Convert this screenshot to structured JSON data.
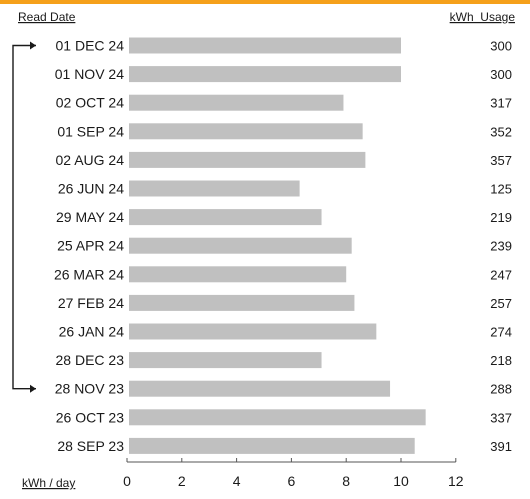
{
  "headers": {
    "read_date": "Read Date",
    "kwh_usage": "kWh  Usage",
    "kwh_per_day": "kWh / day"
  },
  "colors": {
    "accent_bar": "#f5a01a",
    "bar_fill": "#c0c0c0",
    "axis": "#555555",
    "bracket": "#1a1a1a"
  },
  "chart_data": {
    "type": "bar",
    "orientation": "horizontal",
    "xlim": [
      0,
      12
    ],
    "xticks": [
      0,
      2,
      4,
      6,
      8,
      10,
      12
    ],
    "xlabel": "kWh / day",
    "rows": [
      {
        "date": "01 DEC 24",
        "kwh_per_day": 10.0,
        "usage": "300"
      },
      {
        "date": "01 NOV 24",
        "kwh_per_day": 10.0,
        "usage": "300"
      },
      {
        "date": "02 OCT 24",
        "kwh_per_day": 7.9,
        "usage": "317"
      },
      {
        "date": "01 SEP 24",
        "kwh_per_day": 8.6,
        "usage": "352"
      },
      {
        "date": "02 AUG 24",
        "kwh_per_day": 8.7,
        "usage": "357"
      },
      {
        "date": "26 JUN 24",
        "kwh_per_day": 6.3,
        "usage": "125"
      },
      {
        "date": "29 MAY 24",
        "kwh_per_day": 7.1,
        "usage": "219"
      },
      {
        "date": "25 APR 24",
        "kwh_per_day": 8.2,
        "usage": "239"
      },
      {
        "date": "26 MAR 24",
        "kwh_per_day": 8.0,
        "usage": "247"
      },
      {
        "date": "27 FEB 24",
        "kwh_per_day": 8.3,
        "usage": "257"
      },
      {
        "date": "26 JAN 24",
        "kwh_per_day": 9.1,
        "usage": "274"
      },
      {
        "date": "28 DEC 23",
        "kwh_per_day": 7.1,
        "usage": "218"
      },
      {
        "date": "28 NOV 23",
        "kwh_per_day": 9.6,
        "usage": "288"
      },
      {
        "date": "26 OCT 23",
        "kwh_per_day": 10.9,
        "usage": "337"
      },
      {
        "date": "28 SEP 23",
        "kwh_per_day": 10.5,
        "usage": "391"
      }
    ],
    "comparison_bracket": {
      "from_row": 0,
      "to_row": 12
    }
  }
}
